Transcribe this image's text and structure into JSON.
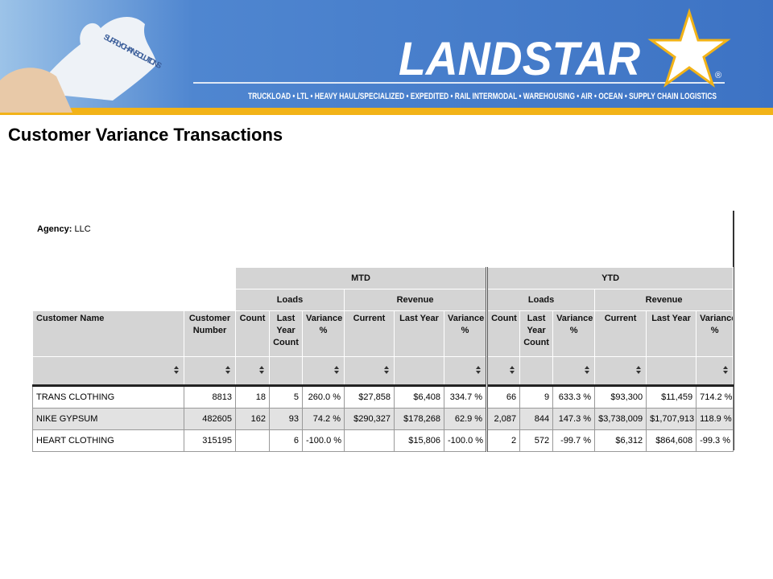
{
  "banner": {
    "puzzle_text": "SUPPLY CHAIN SOLUTIONS",
    "logo": "LANDSTAR",
    "registered": "®",
    "tagline": "TRUCKLOAD • LTL • HEAVY HAUL/SPECIALIZED • EXPEDITED • RAIL INTERMODAL • WAREHOUSING • AIR • OCEAN • SUPPLY CHAIN LOGISTICS"
  },
  "title": "Customer Variance Transactions",
  "report": {
    "agency_label": "Agency:",
    "agency": "LLC",
    "groups": [
      "MTD",
      "YTD"
    ],
    "subgroups": [
      "Loads",
      "Revenue",
      "Loads",
      "Revenue"
    ],
    "columns": [
      "Customer Name",
      "Customer Number",
      "Count",
      "Last Year Count",
      "Variance %",
      "Current",
      "Last Year",
      "Variance %",
      "Count",
      "Last Year Count",
      "Variance %",
      "Current",
      "Last Year",
      "Variance %"
    ],
    "rows": [
      [
        "TRANS  CLOTHING",
        "8813",
        "18",
        "5",
        "260.0 %",
        "$27,858",
        "$6,408",
        "334.7 %",
        "66",
        "9",
        "633.3 %",
        "$93,300",
        "$11,459",
        "714.2 %"
      ],
      [
        "NIKE  GYPSUM",
        "482605",
        "162",
        "93",
        "74.2 %",
        "$290,327",
        "$178,268",
        "62.9 %",
        "2,087",
        "844",
        "147.3 %",
        "$3,738,009",
        "$1,707,913",
        "118.9 %"
      ],
      [
        "HEART CLOTHING",
        "315195",
        null,
        "6",
        "-100.0 %",
        null,
        "$15,806",
        "-100.0 %",
        "2",
        "572",
        "-99.7 %",
        "$6,312",
        "$864,608",
        "-99.3 %"
      ]
    ]
  }
}
